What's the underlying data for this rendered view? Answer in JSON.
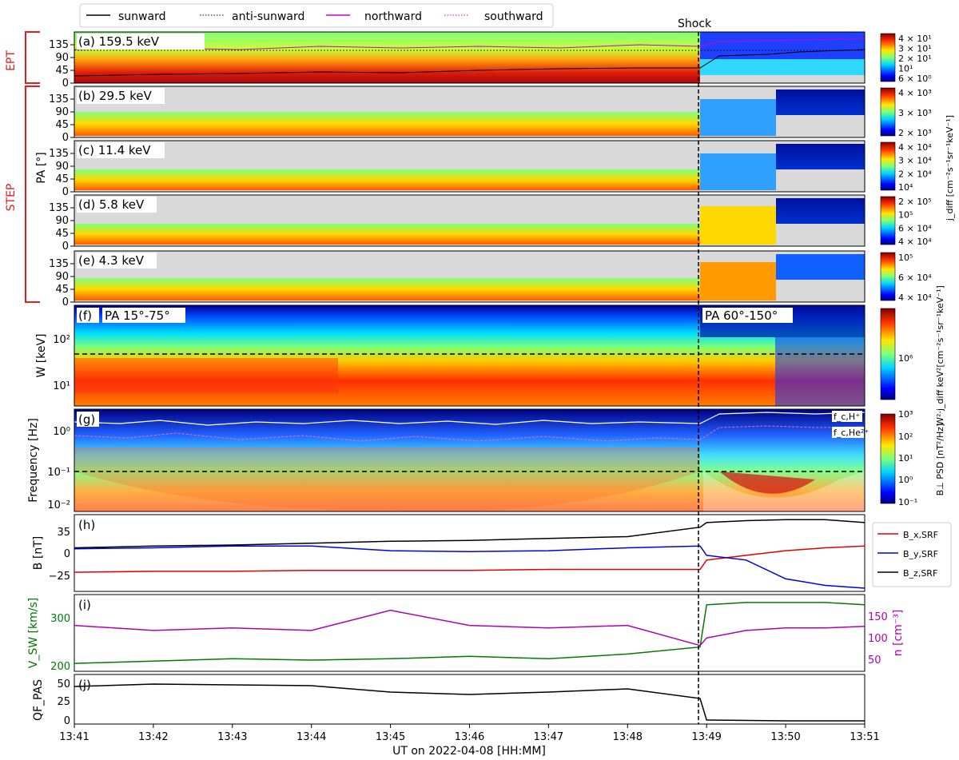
{
  "figure": {
    "shock_label": "Shock",
    "xlabel": "UT on 2022-04-08 [HH:MM]",
    "x_ticks": [
      "13:41",
      "13:42",
      "13:43",
      "13:44",
      "13:45",
      "13:46",
      "13:47",
      "13:48",
      "13:49",
      "13:50",
      "13:51"
    ],
    "shock_time": "13:48:55",
    "legend": {
      "sunward": "sunward",
      "anti_sunward": "anti-sunward",
      "northward": "northward",
      "southward": "southward"
    },
    "group_labels": {
      "ept": "EPT",
      "step": "STEP"
    },
    "pa_axis_label": "PA [°]",
    "pa_ticks": [
      "0",
      "45",
      "90",
      "135"
    ],
    "panels": [
      {
        "id": "a",
        "label": "(a) 159.5 keV",
        "cbar": [
          "4 × 10¹",
          "3 × 10¹",
          "2 × 10¹",
          "10¹",
          "6 × 10⁰"
        ]
      },
      {
        "id": "b",
        "label": "(b) 29.5 keV",
        "cbar": [
          "4 × 10³",
          "3 × 10³",
          "2 × 10³"
        ]
      },
      {
        "id": "c",
        "label": "(c) 11.4 keV",
        "cbar": [
          "4 × 10⁴",
          "3 × 10⁴",
          "2 × 10⁴",
          "10⁴"
        ]
      },
      {
        "id": "d",
        "label": "(d) 5.8 keV",
        "cbar": [
          "2 × 10⁵",
          "10⁵",
          "6 × 10⁴",
          "4 × 10⁴"
        ]
      },
      {
        "id": "e",
        "label": "(e) 4.3 keV",
        "cbar": [
          "10⁵",
          "6 × 10⁴",
          "4 × 10⁴"
        ]
      }
    ],
    "jdiff_label": "j_diff [cm⁻²s⁻¹sr⁻¹keV⁻¹]",
    "panel_f": {
      "label": "(f)",
      "pa_before": "PA 15°-75°",
      "pa_after": "PA 60°-150°",
      "ylabel": "W [keV]",
      "yticks": [
        "10²",
        "10¹"
      ],
      "cbar": [
        "10⁶"
      ],
      "cbar_label": "W²·j_diff keV²[cm⁻²s⁻¹sr⁻¹keV⁻¹]"
    },
    "panel_g": {
      "label": "(g)",
      "ylabel": "Frequency [Hz]",
      "yticks": [
        "10⁰",
        "10⁻¹",
        "10⁻²"
      ],
      "fc_h": "f_c,H⁺",
      "fc_he": "f_c,He²⁺",
      "cbar": [
        "10³",
        "10²",
        "10¹",
        "10⁰",
        "10⁻¹"
      ],
      "cbar_label": "B⊥ PSD [nT²/Hz]"
    },
    "panel_h": {
      "label": "(h)",
      "ylabel": "B [nT]",
      "yticks": [
        "35",
        "0",
        "−25"
      ],
      "legend": [
        "B_x,SRF",
        "B_y,SRF",
        "B_z,SRF"
      ]
    },
    "panel_i": {
      "label": "(i)",
      "ylabel_left": "V_SW [km/s]",
      "yticks_left": [
        "300",
        "200"
      ],
      "ylabel_right": "n [cm⁻³]",
      "yticks_right": [
        "150",
        "100",
        "50"
      ]
    },
    "panel_j": {
      "label": "(j)",
      "ylabel": "QF_PAS",
      "yticks": [
        "50",
        "25",
        "0"
      ]
    },
    "colors": {
      "sunward": "#000000",
      "northward": "#cc00cc",
      "bx": "#e00000",
      "by": "#0000e0",
      "bz": "#000000",
      "vsw": "#007a00",
      "n": "#b000b0"
    }
  },
  "chart_data": {
    "type": "line",
    "x_range": [
      "13:41",
      "13:51"
    ],
    "shock_time": "13:48:55",
    "panel_h": {
      "x": [
        "13:41",
        "13:42",
        "13:43",
        "13:44",
        "13:45",
        "13:46",
        "13:47",
        "13:48",
        "13:48:55",
        "13:49",
        "13:49:30",
        "13:50",
        "13:50:30",
        "13:51"
      ],
      "series": [
        {
          "name": "B_x,SRF",
          "values": [
            -18,
            -17,
            -17,
            -16,
            -16,
            -16,
            -15,
            -15,
            -15,
            -5,
            0,
            5,
            8,
            10
          ]
        },
        {
          "name": "B_y,SRF",
          "values": [
            7,
            8,
            10,
            10,
            5,
            4,
            5,
            8,
            10,
            0,
            -5,
            -25,
            -32,
            -35
          ]
        },
        {
          "name": "B_z,SRF",
          "values": [
            8,
            10,
            11,
            13,
            15,
            16,
            18,
            20,
            30,
            35,
            37,
            38,
            38,
            35
          ]
        }
      ],
      "ylim": [
        -35,
        40
      ]
    },
    "panel_i": {
      "x": [
        "13:41",
        "13:42",
        "13:43",
        "13:44",
        "13:45",
        "13:46",
        "13:47",
        "13:48",
        "13:48:55",
        "13:49",
        "13:49:30",
        "13:50",
        "13:50:30",
        "13:51"
      ],
      "series": [
        {
          "name": "V_SW",
          "values": [
            205,
            210,
            215,
            212,
            215,
            220,
            215,
            225,
            240,
            330,
            335,
            335,
            335,
            330
          ]
        },
        {
          "name": "n",
          "values": [
            120,
            110,
            115,
            110,
            150,
            120,
            115,
            120,
            80,
            95,
            110,
            115,
            115,
            118
          ]
        }
      ]
    },
    "panel_j": {
      "x": [
        "13:41",
        "13:42",
        "13:43",
        "13:44",
        "13:45",
        "13:46",
        "13:47",
        "13:48",
        "13:48:55",
        "13:49",
        "13:50",
        "13:51"
      ],
      "series": [
        {
          "name": "QF_PAS",
          "values": [
            45,
            48,
            47,
            46,
            38,
            35,
            38,
            42,
            30,
            3,
            2,
            2
          ]
        }
      ],
      "ylim": [
        0,
        58
      ]
    }
  }
}
